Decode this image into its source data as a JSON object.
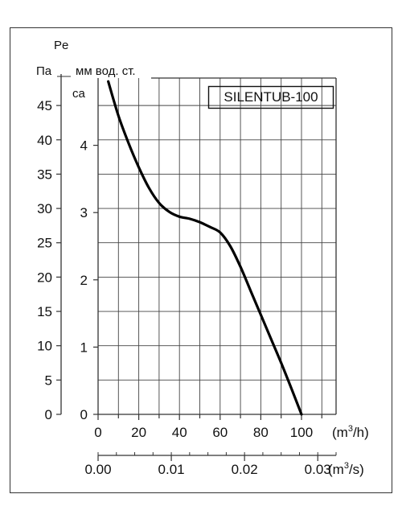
{
  "chart_data": {
    "type": "line",
    "title": "",
    "legend": "SILENTUB-100",
    "left_axis": {
      "label_top": "Pe",
      "label_unit": "Па",
      "range": [
        0,
        49
      ],
      "ticks": [
        0,
        5,
        10,
        15,
        20,
        25,
        30,
        35,
        40,
        45
      ]
    },
    "right_axis": {
      "label_unit": "мм вод. ст.",
      "label_sub": "ca",
      "range": [
        0,
        5
      ],
      "ticks": [
        0,
        1,
        2,
        3,
        4
      ]
    },
    "x_axis": {
      "label_unit": "(m3/h)",
      "range": [
        0,
        117
      ],
      "ticks": [
        0,
        20,
        40,
        60,
        80,
        100
      ]
    },
    "x2_axis": {
      "label_unit": "(m3/s)",
      "range": [
        0,
        0.0325
      ],
      "ticks": [
        "0.00",
        "0.01",
        "0.02",
        "0.03"
      ],
      "tick_values": [
        0,
        0.01,
        0.02,
        0.03
      ]
    },
    "series": [
      {
        "x": [
          5,
          10,
          15,
          20,
          25,
          30,
          35,
          40,
          45,
          50,
          55,
          60,
          65,
          70,
          75,
          80,
          85,
          90,
          95,
          100
        ],
        "y": [
          48.5,
          43.5,
          39.5,
          36.0,
          33.0,
          30.8,
          29.5,
          28.8,
          28.5,
          28.0,
          27.3,
          26.5,
          24.5,
          21.5,
          18.0,
          14.5,
          11.0,
          7.5,
          3.8,
          0
        ]
      }
    ],
    "grid": true,
    "line_color": "#000000",
    "frame_color": "#333333"
  }
}
